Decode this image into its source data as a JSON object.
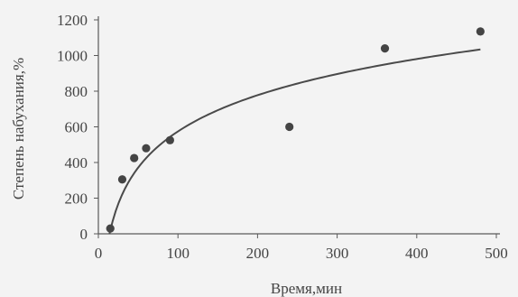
{
  "chart_data": {
    "type": "scatter",
    "title": "",
    "xlabel": "Время,мин",
    "ylabel": "Степень набухания,%",
    "xlim": [
      0,
      500
    ],
    "ylim": [
      0,
      1200
    ],
    "xticks": [
      0,
      100,
      200,
      300,
      400,
      500
    ],
    "yticks": [
      0,
      200,
      400,
      600,
      800,
      1000,
      1200
    ],
    "grid": false,
    "points": [
      {
        "x": 15,
        "y": 30
      },
      {
        "x": 30,
        "y": 305
      },
      {
        "x": 45,
        "y": 425
      },
      {
        "x": 60,
        "y": 480
      },
      {
        "x": 90,
        "y": 525
      },
      {
        "x": 240,
        "y": 600
      },
      {
        "x": 360,
        "y": 1040
      },
      {
        "x": 480,
        "y": 1135
      }
    ],
    "trendline": {
      "type": "logarithmic",
      "a": 293,
      "b": -775
    }
  }
}
